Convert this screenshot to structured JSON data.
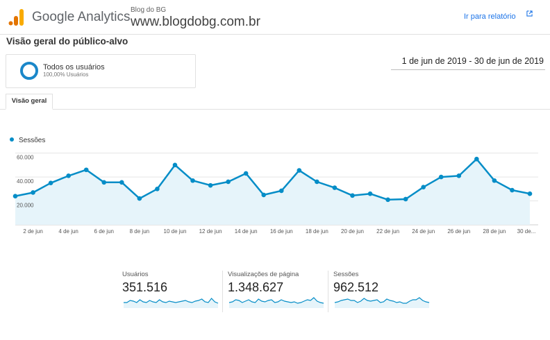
{
  "header": {
    "app_name": "Google Analytics",
    "property": "Blog do BG",
    "view": "www.blogdobg.com.br",
    "report_link": "Ir para relatório"
  },
  "page": {
    "title": "Visão geral do público-alvo"
  },
  "segment": {
    "name": "Todos os usuários",
    "percent": "100,00% Usuários"
  },
  "date_range": "1 de jun de 2019 - 30 de jun de 2019",
  "tab": {
    "label": "Visão geral"
  },
  "colors": {
    "accent": "#058dc7",
    "link": "#1a73e8",
    "area_fill": "#e6f4fa"
  },
  "chart_data": {
    "type": "area",
    "legend": "Sessões",
    "legend_position": "top-left",
    "ylim": [
      0,
      65000
    ],
    "yticks": [
      20000,
      40000,
      60000
    ],
    "ytick_labels": [
      "20.000",
      "40.000",
      "60.000"
    ],
    "x": [
      "1 de jun",
      "2 de jun",
      "3 de jun",
      "4 de jun",
      "5 de jun",
      "6 de jun",
      "7 de jun",
      "8 de jun",
      "9 de jun",
      "10 de jun",
      "11 de jun",
      "12 de jun",
      "13 de jun",
      "14 de jun",
      "15 de jun",
      "16 de jun",
      "17 de jun",
      "18 de jun",
      "19 de jun",
      "20 de jun",
      "21 de jun",
      "22 de jun",
      "23 de jun",
      "24 de jun",
      "25 de jun",
      "26 de jun",
      "27 de jun",
      "28 de jun",
      "29 de jun",
      "30 de jun"
    ],
    "xtick_labels": [
      "2 de jun",
      "4 de jun",
      "6 de jun",
      "8 de jun",
      "10 de jun",
      "12 de jun",
      "14 de jun",
      "16 de jun",
      "18 de jun",
      "20 de jun",
      "22 de jun",
      "24 de jun",
      "26 de jun",
      "28 de jun",
      "30 de..."
    ],
    "xtick_indices": [
      1,
      3,
      5,
      7,
      9,
      11,
      13,
      15,
      17,
      19,
      21,
      23,
      25,
      27,
      29
    ],
    "series": [
      {
        "name": "Sessões",
        "values": [
          24000,
          27000,
          35000,
          41000,
          46000,
          35500,
          35500,
          22000,
          30000,
          50000,
          37000,
          33000,
          36000,
          43000,
          25000,
          28500,
          45500,
          36000,
          31000,
          24500,
          26000,
          21000,
          21500,
          31500,
          40000,
          41000,
          55000,
          37000,
          29000,
          26000
        ]
      }
    ]
  },
  "metrics": [
    {
      "label": "Usuários",
      "value": "351.516",
      "sparkline": [
        8,
        8,
        11,
        10,
        8,
        12,
        9,
        8,
        11,
        9,
        8,
        12,
        9,
        8,
        10,
        9,
        8,
        9,
        10,
        11,
        9,
        8,
        10,
        11,
        13,
        9,
        8,
        14,
        9,
        7
      ]
    },
    {
      "label": "Visualizações de página",
      "value": "1.348.627",
      "sparkline": [
        8,
        9,
        12,
        11,
        8,
        10,
        12,
        9,
        8,
        13,
        10,
        9,
        11,
        12,
        8,
        9,
        12,
        10,
        9,
        8,
        9,
        7,
        8,
        10,
        12,
        11,
        15,
        10,
        8,
        7
      ]
    },
    {
      "label": "Sessões",
      "value": "962.512",
      "sparkline": [
        8,
        9,
        11,
        12,
        13,
        11,
        11,
        8,
        10,
        14,
        11,
        10,
        11,
        12,
        8,
        9,
        13,
        11,
        10,
        8,
        9,
        7,
        7,
        10,
        12,
        12,
        15,
        11,
        9,
        8
      ]
    }
  ]
}
